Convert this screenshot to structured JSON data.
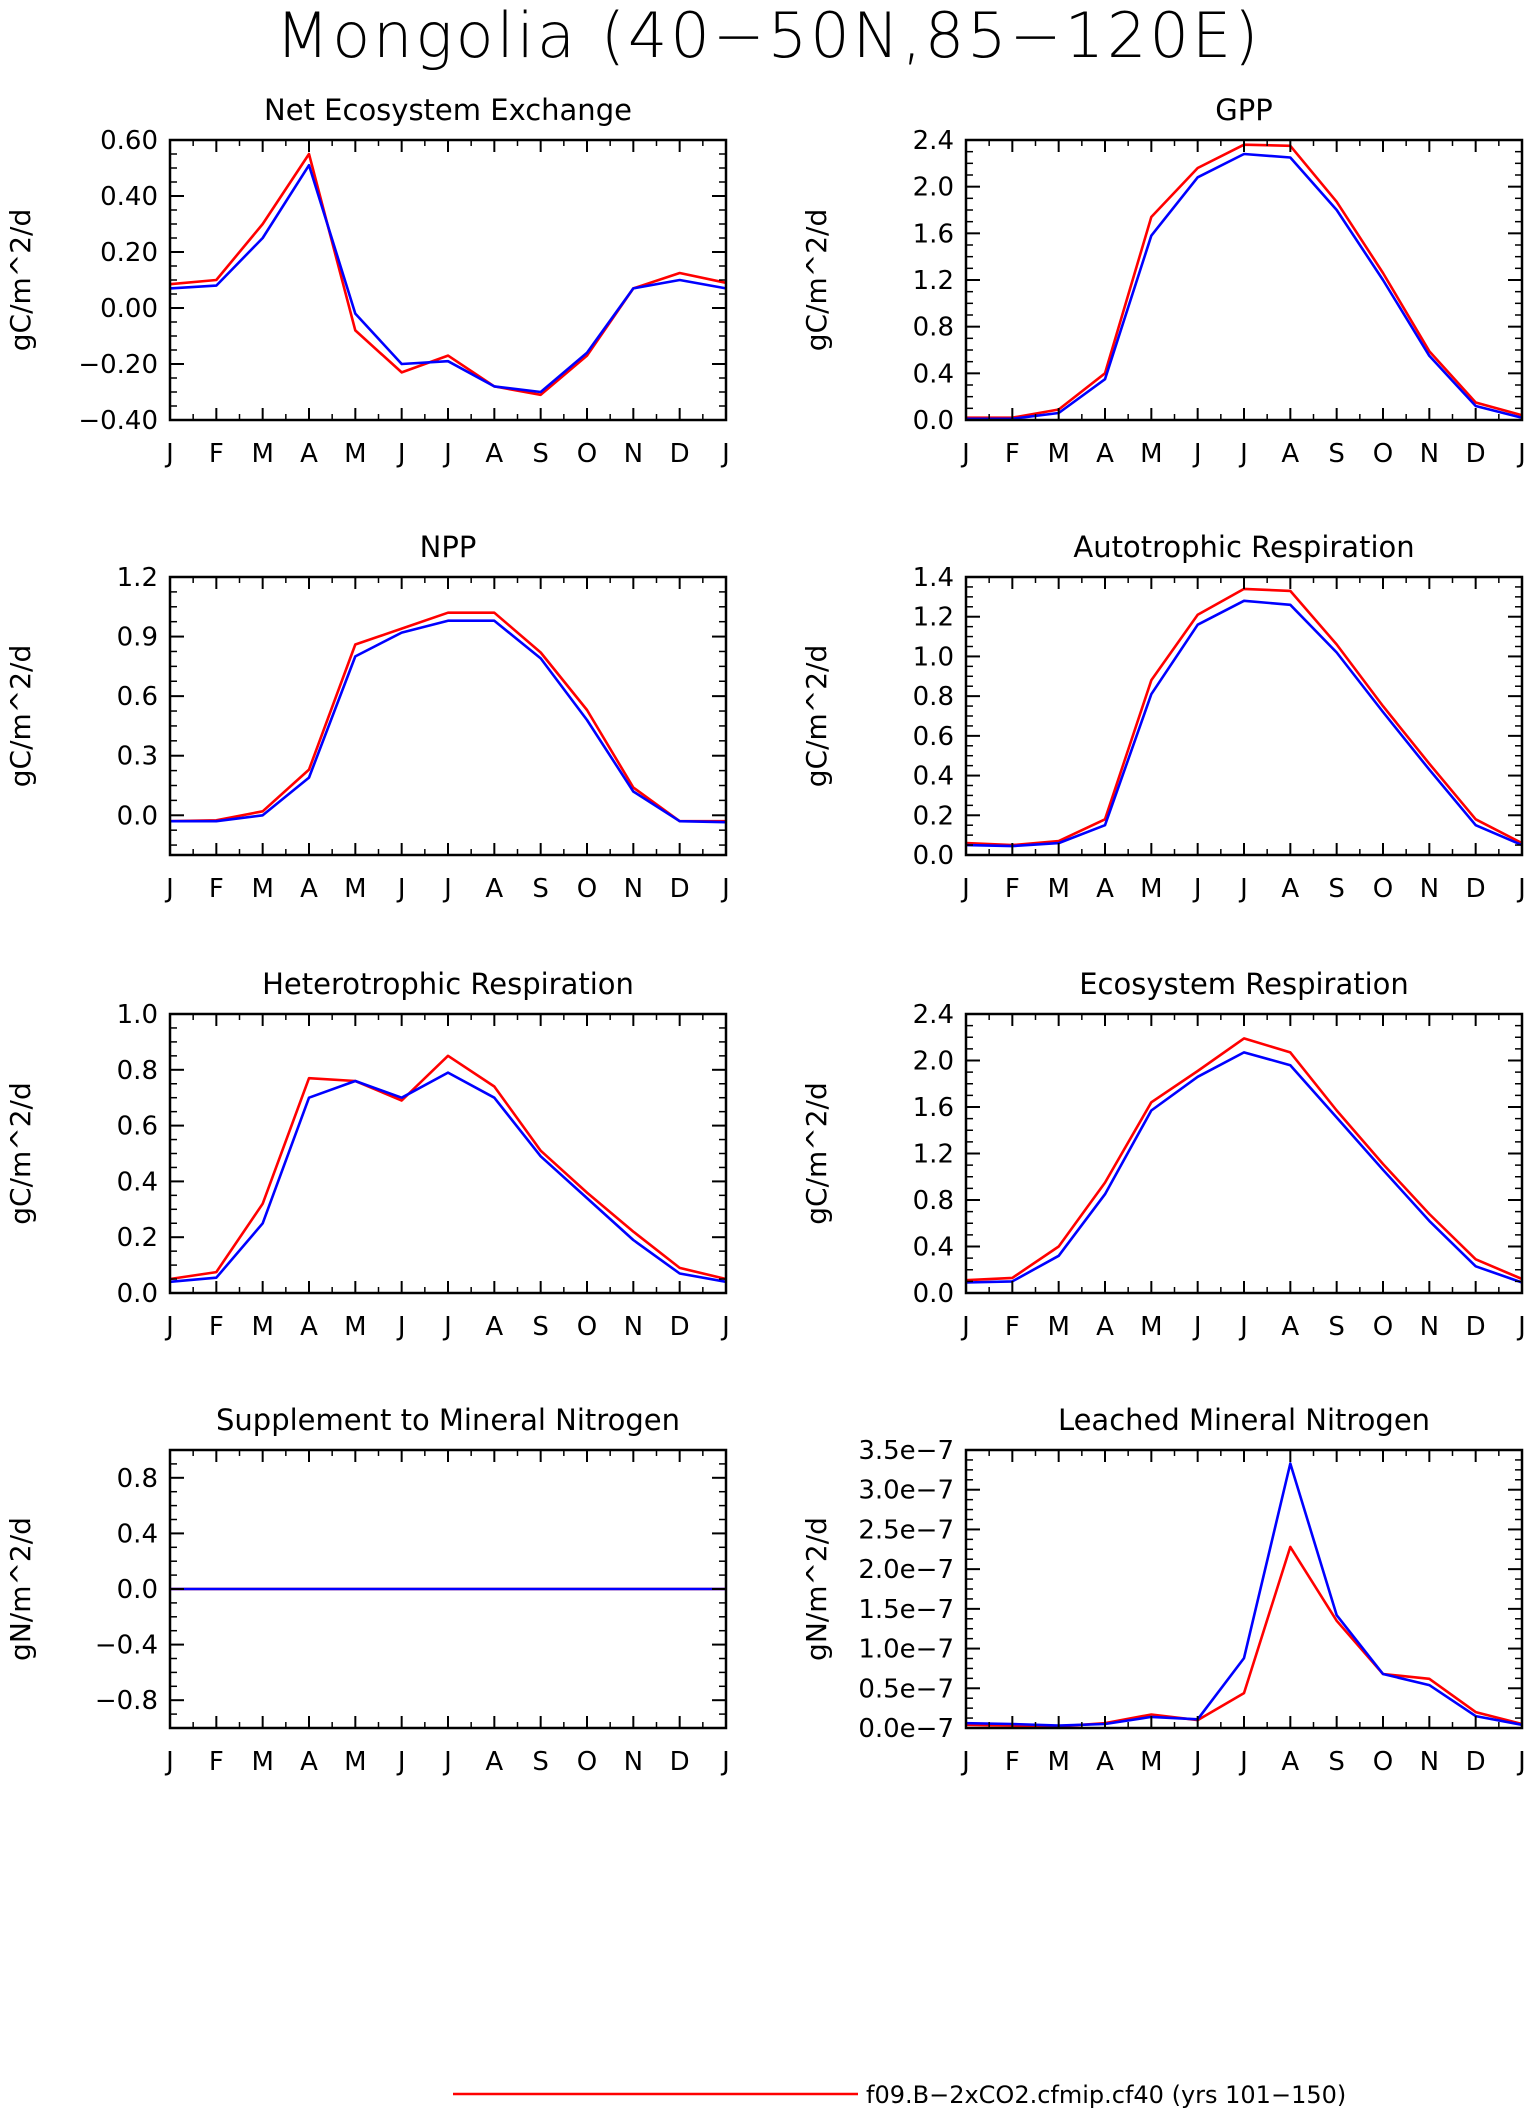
{
  "page": {
    "title": "Mongolia (40−50N,85−120E)"
  },
  "colors": {
    "series_red": "#ff0000",
    "series_blue": "#0000ff",
    "axis": "#000000"
  },
  "legend": [
    {
      "label": "f09.B−2xCO2.cfmip.cf40 (yrs 101−150)",
      "color": "#ff0000"
    }
  ],
  "chart_data": [
    {
      "type": "line",
      "title": "Net Ecosystem Exchange",
      "ylabel": "gC/m^2/d",
      "categories": [
        "J",
        "F",
        "M",
        "A",
        "M",
        "J",
        "J",
        "A",
        "S",
        "O",
        "N",
        "D",
        "J"
      ],
      "ylim": [
        -0.4,
        0.6
      ],
      "yticks": [
        -0.4,
        -0.2,
        0.0,
        0.2,
        0.4,
        0.6
      ],
      "ytick_labels": [
        "−0.40",
        "−0.20",
        "0.00",
        "0.20",
        "0.40",
        "0.60"
      ],
      "series": [
        {
          "color": "#ff0000",
          "values": [
            0.085,
            0.1,
            0.3,
            0.55,
            -0.08,
            -0.23,
            -0.17,
            -0.28,
            -0.31,
            -0.17,
            0.07,
            0.125,
            0.09
          ]
        },
        {
          "color": "#0000ff",
          "values": [
            0.07,
            0.08,
            0.25,
            0.51,
            -0.02,
            -0.2,
            -0.19,
            -0.28,
            -0.3,
            -0.16,
            0.07,
            0.1,
            0.07
          ]
        }
      ]
    },
    {
      "type": "line",
      "title": "GPP",
      "ylabel": "gC/m^2/d",
      "categories": [
        "J",
        "F",
        "M",
        "A",
        "M",
        "J",
        "J",
        "A",
        "S",
        "O",
        "N",
        "D",
        "J"
      ],
      "ylim": [
        0.0,
        2.4
      ],
      "yticks": [
        0.0,
        0.4,
        0.8,
        1.2,
        1.6,
        2.0,
        2.4
      ],
      "ytick_labels": [
        "0.0",
        "0.4",
        "0.8",
        "1.2",
        "1.6",
        "2.0",
        "2.4"
      ],
      "series": [
        {
          "color": "#ff0000",
          "values": [
            0.02,
            0.02,
            0.09,
            0.4,
            1.74,
            2.16,
            2.36,
            2.35,
            1.87,
            1.26,
            0.59,
            0.15,
            0.04
          ]
        },
        {
          "color": "#0000ff",
          "values": [
            0.01,
            0.01,
            0.06,
            0.35,
            1.58,
            2.08,
            2.28,
            2.25,
            1.8,
            1.2,
            0.55,
            0.12,
            0.02
          ]
        }
      ]
    },
    {
      "type": "line",
      "title": "NPP",
      "ylabel": "gC/m^2/d",
      "categories": [
        "J",
        "F",
        "M",
        "A",
        "M",
        "J",
        "J",
        "A",
        "S",
        "O",
        "N",
        "D",
        "J"
      ],
      "ylim": [
        -0.2,
        1.2
      ],
      "yticks": [
        0.0,
        0.3,
        0.6,
        0.9,
        1.2
      ],
      "ytick_labels": [
        "0.0",
        "0.3",
        "0.6",
        "0.9",
        "1.2"
      ],
      "series": [
        {
          "color": "#ff0000",
          "values": [
            -0.03,
            -0.025,
            0.02,
            0.23,
            0.86,
            0.94,
            1.02,
            1.02,
            0.82,
            0.53,
            0.14,
            -0.03,
            -0.03
          ]
        },
        {
          "color": "#0000ff",
          "values": [
            -0.03,
            -0.03,
            0.0,
            0.19,
            0.8,
            0.92,
            0.98,
            0.98,
            0.79,
            0.48,
            0.12,
            -0.03,
            -0.035
          ]
        }
      ]
    },
    {
      "type": "line",
      "title": "Autotrophic Respiration",
      "ylabel": "gC/m^2/d",
      "categories": [
        "J",
        "F",
        "M",
        "A",
        "M",
        "J",
        "J",
        "A",
        "S",
        "O",
        "N",
        "D",
        "J"
      ],
      "ylim": [
        0.0,
        1.4
      ],
      "yticks": [
        0.0,
        0.2,
        0.4,
        0.6,
        0.8,
        1.0,
        1.2,
        1.4
      ],
      "ytick_labels": [
        "0.0",
        "0.2",
        "0.4",
        "0.6",
        "0.8",
        "1.0",
        "1.2",
        "1.4"
      ],
      "series": [
        {
          "color": "#ff0000",
          "values": [
            0.06,
            0.05,
            0.07,
            0.18,
            0.88,
            1.21,
            1.34,
            1.33,
            1.06,
            0.75,
            0.46,
            0.18,
            0.06
          ]
        },
        {
          "color": "#0000ff",
          "values": [
            0.05,
            0.045,
            0.06,
            0.15,
            0.81,
            1.16,
            1.28,
            1.26,
            1.02,
            0.72,
            0.43,
            0.15,
            0.05
          ]
        }
      ]
    },
    {
      "type": "line",
      "title": "Heterotrophic Respiration",
      "ylabel": "gC/m^2/d",
      "categories": [
        "J",
        "F",
        "M",
        "A",
        "M",
        "J",
        "J",
        "A",
        "S",
        "O",
        "N",
        "D",
        "J"
      ],
      "ylim": [
        0.0,
        1.0
      ],
      "yticks": [
        0.0,
        0.2,
        0.4,
        0.6,
        0.8,
        1.0
      ],
      "ytick_labels": [
        "0.0",
        "0.2",
        "0.4",
        "0.6",
        "0.8",
        "1.0"
      ],
      "series": [
        {
          "color": "#ff0000",
          "values": [
            0.05,
            0.075,
            0.32,
            0.77,
            0.76,
            0.69,
            0.85,
            0.74,
            0.51,
            0.36,
            0.22,
            0.09,
            0.05
          ]
        },
        {
          "color": "#0000ff",
          "values": [
            0.04,
            0.055,
            0.25,
            0.7,
            0.76,
            0.7,
            0.79,
            0.7,
            0.49,
            0.34,
            0.19,
            0.07,
            0.04
          ]
        }
      ]
    },
    {
      "type": "line",
      "title": "Ecosystem Respiration",
      "ylabel": "gC/m^2/d",
      "categories": [
        "J",
        "F",
        "M",
        "A",
        "M",
        "J",
        "J",
        "A",
        "S",
        "O",
        "N",
        "D",
        "J"
      ],
      "ylim": [
        0.0,
        2.4
      ],
      "yticks": [
        0.0,
        0.4,
        0.8,
        1.2,
        1.6,
        2.0,
        2.4
      ],
      "ytick_labels": [
        "0.0",
        "0.4",
        "0.8",
        "1.2",
        "1.6",
        "2.0",
        "2.4"
      ],
      "series": [
        {
          "color": "#ff0000",
          "values": [
            0.11,
            0.13,
            0.4,
            0.95,
            1.64,
            1.91,
            2.19,
            2.07,
            1.57,
            1.11,
            0.68,
            0.29,
            0.12
          ]
        },
        {
          "color": "#0000ff",
          "values": [
            0.09,
            0.1,
            0.32,
            0.85,
            1.57,
            1.86,
            2.07,
            1.96,
            1.51,
            1.06,
            0.62,
            0.23,
            0.09
          ]
        }
      ]
    },
    {
      "type": "line",
      "title": "Supplement to Mineral Nitrogen",
      "ylabel": "gN/m^2/d",
      "categories": [
        "J",
        "F",
        "M",
        "A",
        "M",
        "J",
        "J",
        "A",
        "S",
        "O",
        "N",
        "D",
        "J"
      ],
      "ylim": [
        -1.0,
        1.0
      ],
      "yticks": [
        -0.8,
        -0.4,
        0.0,
        0.4,
        0.8
      ],
      "ytick_labels": [
        "−0.8",
        "−0.4",
        "0.0",
        "0.4",
        "0.8"
      ],
      "series": [
        {
          "color": "#ff0000",
          "values": [
            0,
            0,
            0,
            0,
            0,
            0,
            0,
            0,
            0,
            0,
            0,
            0,
            0
          ]
        },
        {
          "color": "#0000ff",
          "values": [
            0,
            0,
            0,
            0,
            0,
            0,
            0,
            0,
            0,
            0,
            0,
            0,
            0
          ]
        }
      ]
    },
    {
      "type": "line",
      "title": "Leached Mineral Nitrogen",
      "ylabel": "gN/m^2/d",
      "categories": [
        "J",
        "F",
        "M",
        "A",
        "M",
        "J",
        "J",
        "A",
        "S",
        "O",
        "N",
        "D",
        "J"
      ],
      "ylim": [
        0.0,
        3.5e-07
      ],
      "yticks": [
        0.0,
        5e-08,
        1e-07,
        1.5e-07,
        2e-07,
        2.5e-07,
        3e-07,
        3.5e-07
      ],
      "ytick_labels": [
        "0.0e−7",
        "0.5e−7",
        "1.0e−7",
        "1.5e−7",
        "2.0e−7",
        "2.5e−7",
        "3.0e−7",
        "3.5e−7"
      ],
      "series": [
        {
          "color": "#ff0000",
          "values": [
            4e-09,
            3e-09,
            2e-09,
            6e-09,
            1.7e-08,
            1e-08,
            4.4e-08,
            2.28e-07,
            1.35e-07,
            6.8e-08,
            6.2e-08,
            2e-08,
            5e-09
          ]
        },
        {
          "color": "#0000ff",
          "values": [
            6e-09,
            5e-09,
            3e-09,
            5e-09,
            1.4e-08,
            1.1e-08,
            8.8e-08,
            3.33e-07,
            1.42e-07,
            6.8e-08,
            5.4e-08,
            1.5e-08,
            4e-09
          ]
        }
      ]
    }
  ]
}
